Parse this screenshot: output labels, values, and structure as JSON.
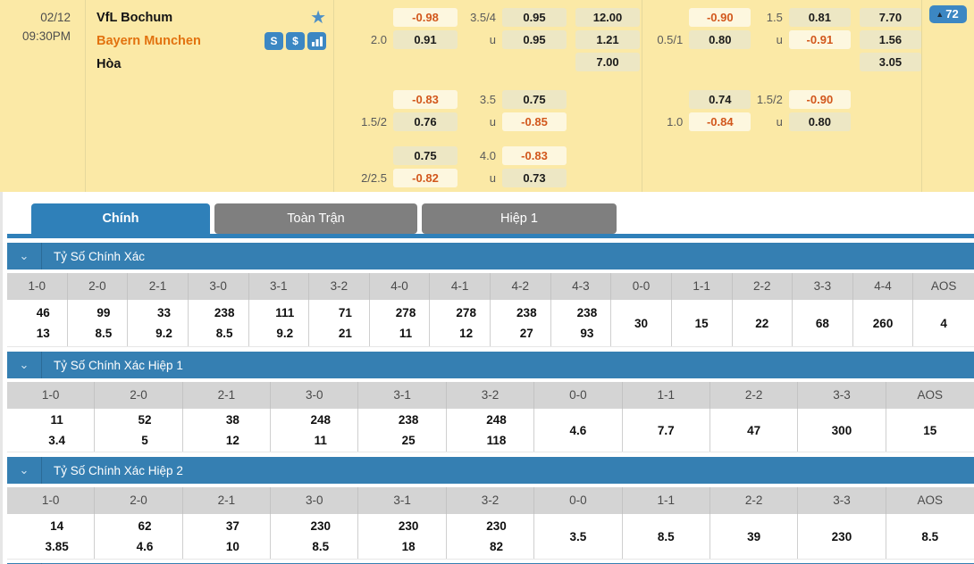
{
  "colors": {
    "panel_yellow": "#FBE9A6",
    "odds_box": "#EDE7C4",
    "odds_box_changed": "#FDF7DF",
    "negative_orange": "#D2571C",
    "away_team_orange": "#E2720F",
    "accent_blue": "#2F80B9",
    "icon_blue": "#3C87C3",
    "inactive_tab_gray": "#7F7F7F",
    "header_gray": "#D4D4D4"
  },
  "match": {
    "date": "02/12",
    "time": "09:30PM",
    "home_team": "VfL Bochum",
    "away_team": "Bayern Munchen",
    "draw_label": "Hòa",
    "more_odds_count": "72",
    "icons": {
      "favorite": "star-icon",
      "stream": "stream-icon",
      "dollar": "dollar-icon",
      "stats": "bar-chart-icon"
    },
    "odds_groups": [
      {
        "blocks": [
          {
            "rows": [
              {
                "h1": "",
                "v1": "-0.98",
                "h2": "3.5/4",
                "v2": "0.95",
                "v3": "12.00"
              },
              {
                "h1": "2.0",
                "v1": "0.91",
                "h2": "u",
                "v2": "0.95",
                "v3": "1.21"
              },
              {
                "h1": "",
                "v1": "",
                "h2": "",
                "v2": "",
                "v3": "7.00"
              }
            ]
          },
          {
            "rows": [
              {
                "h1": "",
                "v1": "-0.83",
                "h2": "3.5",
                "v2": "0.75",
                "v3": ""
              },
              {
                "h1": "1.5/2",
                "v1": "0.76",
                "h2": "u",
                "v2": "-0.85",
                "v3": ""
              }
            ]
          },
          {
            "rows": [
              {
                "h1": "",
                "v1": "0.75",
                "h2": "4.0",
                "v2": "-0.83",
                "v3": ""
              },
              {
                "h1": "2/2.5",
                "v1": "-0.82",
                "h2": "u",
                "v2": "0.73",
                "v3": ""
              }
            ]
          }
        ]
      },
      {
        "blocks": [
          {
            "rows": [
              {
                "h1": "",
                "v1": "-0.90",
                "h2": "1.5",
                "v2": "0.81",
                "v3": "7.70"
              },
              {
                "h1": "0.5/1",
                "v1": "0.80",
                "h2": "u",
                "v2": "-0.91",
                "v3": "1.56"
              },
              {
                "h1": "",
                "v1": "",
                "h2": "",
                "v2": "",
                "v3": "3.05"
              }
            ]
          },
          {
            "rows": [
              {
                "h1": "",
                "v1": "0.74",
                "h2": "1.5/2",
                "v2": "-0.90",
                "v3": ""
              },
              {
                "h1": "1.0",
                "v1": "-0.84",
                "h2": "u",
                "v2": "0.80",
                "v3": ""
              }
            ]
          }
        ]
      }
    ]
  },
  "tabs": [
    {
      "label": "Chính",
      "active": true
    },
    {
      "label": "Toàn Trận",
      "active": false
    },
    {
      "label": "Hiệp 1",
      "active": false
    }
  ],
  "score_sections": [
    {
      "title": "Tỷ Số Chính Xác",
      "columns": [
        "1-0",
        "2-0",
        "2-1",
        "3-0",
        "3-1",
        "3-2",
        "4-0",
        "4-1",
        "4-2",
        "4-3",
        "0-0",
        "1-1",
        "2-2",
        "3-3",
        "4-4",
        "AOS"
      ],
      "values": [
        [
          "46",
          "13"
        ],
        [
          "99",
          "8.5"
        ],
        [
          "33",
          "9.2"
        ],
        [
          "238",
          "8.5"
        ],
        [
          "111",
          "9.2"
        ],
        [
          "71",
          "21"
        ],
        [
          "278",
          "11"
        ],
        [
          "278",
          "12"
        ],
        [
          "238",
          "27"
        ],
        [
          "238",
          "93"
        ],
        [
          "30"
        ],
        [
          "15"
        ],
        [
          "22"
        ],
        [
          "68"
        ],
        [
          "260"
        ],
        [
          "4"
        ]
      ]
    },
    {
      "title": "Tỷ Số Chính Xác Hiệp 1",
      "columns": [
        "1-0",
        "2-0",
        "2-1",
        "3-0",
        "3-1",
        "3-2",
        "0-0",
        "1-1",
        "2-2",
        "3-3",
        "AOS"
      ],
      "values": [
        [
          "11",
          "3.4"
        ],
        [
          "52",
          "5"
        ],
        [
          "38",
          "12"
        ],
        [
          "248",
          "11"
        ],
        [
          "238",
          "25"
        ],
        [
          "248",
          "118"
        ],
        [
          "4.6"
        ],
        [
          "7.7"
        ],
        [
          "47"
        ],
        [
          "300"
        ],
        [
          "15"
        ]
      ]
    },
    {
      "title": "Tỷ Số Chính Xác Hiệp 2",
      "columns": [
        "1-0",
        "2-0",
        "2-1",
        "3-0",
        "3-1",
        "3-2",
        "0-0",
        "1-1",
        "2-2",
        "3-3",
        "AOS"
      ],
      "values": [
        [
          "14",
          "3.85"
        ],
        [
          "62",
          "4.6"
        ],
        [
          "37",
          "10"
        ],
        [
          "230",
          "8.5"
        ],
        [
          "230",
          "18"
        ],
        [
          "230",
          "82"
        ],
        [
          "3.5"
        ],
        [
          "8.5"
        ],
        [
          "39"
        ],
        [
          "230"
        ],
        [
          "8.5"
        ]
      ]
    }
  ]
}
